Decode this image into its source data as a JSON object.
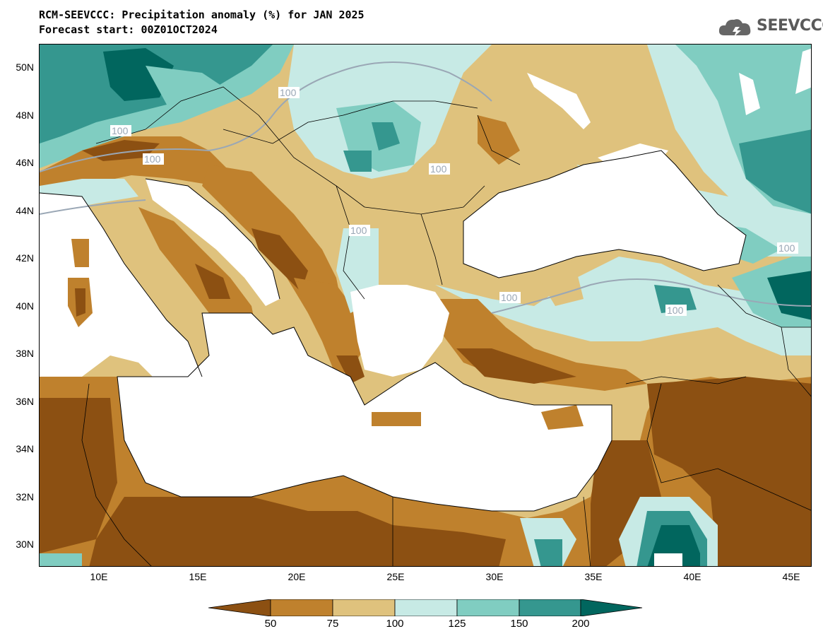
{
  "header": {
    "title": "RCM-SEEVCCC: Precipitation anomaly (%) for JAN 2025",
    "subtitle": "Forecast start: 00Z01OCT2024",
    "logo_text": "SEEVCCC"
  },
  "map": {
    "lat_labels": [
      "50N",
      "48N",
      "46N",
      "44N",
      "42N",
      "40N",
      "38N",
      "36N",
      "34N",
      "32N",
      "30N"
    ],
    "lon_labels": [
      "10E",
      "15E",
      "20E",
      "25E",
      "30E",
      "35E",
      "40E",
      "45E"
    ],
    "contour_labels": [
      "100",
      "100",
      "100",
      "100",
      "100",
      "100",
      "100",
      "100"
    ],
    "extent": {
      "lon": [
        7,
        46
      ],
      "lat": [
        29,
        51
      ]
    }
  },
  "legend": {
    "labels": [
      "50",
      "75",
      "100",
      "125",
      "150",
      "200"
    ],
    "colors": {
      "lt50": "#8c5012",
      "50_75": "#bf812d",
      "75_100": "#dfc27d",
      "100_125": "#c7eae5",
      "125_150": "#80cdc1",
      "150_200": "#35978f",
      "gt200": "#01665e"
    }
  }
}
